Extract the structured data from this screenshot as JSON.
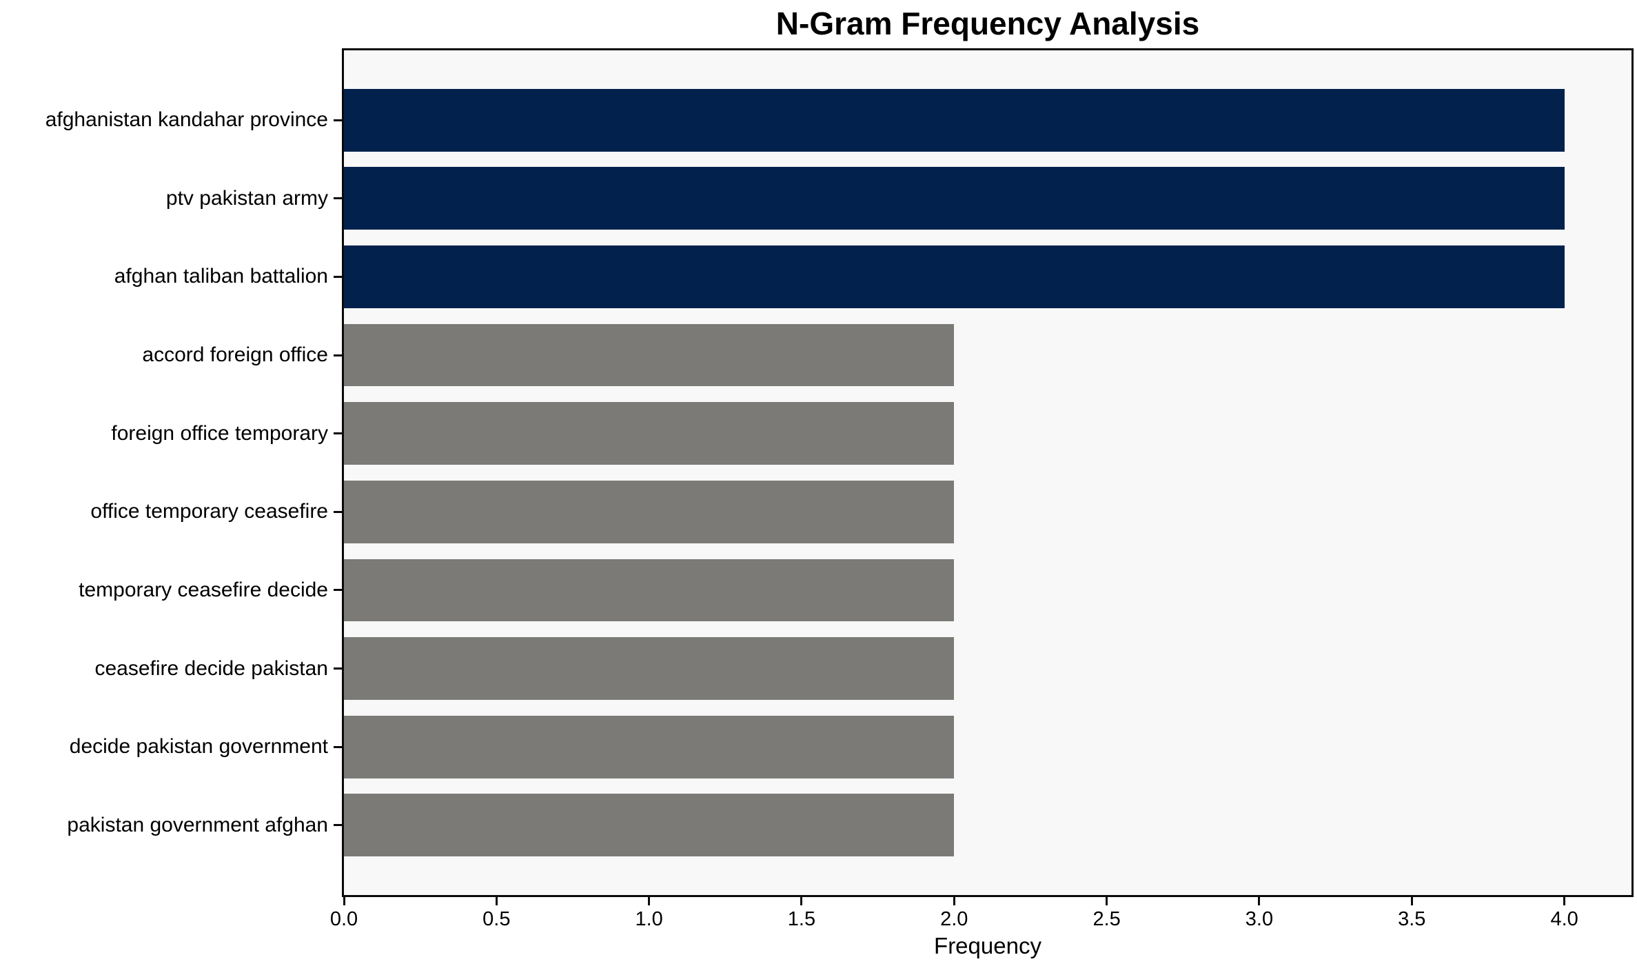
{
  "chart_data": {
    "type": "bar",
    "orientation": "horizontal",
    "title": "N-Gram Frequency Analysis",
    "xlabel": "Frequency",
    "ylabel": "",
    "categories": [
      "afghanistan kandahar province",
      "ptv pakistan army",
      "afghan taliban battalion",
      "accord foreign office",
      "foreign office temporary",
      "office temporary ceasefire",
      "temporary ceasefire decide",
      "ceasefire decide pakistan",
      "decide pakistan government",
      "pakistan government afghan"
    ],
    "values": [
      4,
      4,
      4,
      2,
      2,
      2,
      2,
      2,
      2,
      2
    ],
    "bar_colors": [
      "#02224d",
      "#02224d",
      "#02224d",
      "#7b7a77",
      "#7b7a77",
      "#7b7a77",
      "#7b7a77",
      "#7b7a77",
      "#7b7a77",
      "#7b7a77"
    ],
    "xlim": [
      0,
      4.22
    ],
    "xticks": [
      0.0,
      0.5,
      1.0,
      1.5,
      2.0,
      2.5,
      3.0,
      3.5,
      4.0
    ],
    "xtick_labels": [
      "0.0",
      "0.5",
      "1.0",
      "1.5",
      "2.0",
      "2.5",
      "3.0",
      "3.5",
      "4.0"
    ],
    "grid": false,
    "legend": false,
    "colors": {
      "highlight_bar": "#02224d",
      "regular_bar": "#7b7a77",
      "plot_background": "#f8f8f8",
      "figure_background": "#ffffff",
      "spine": "#0a0a0a",
      "text": "#000000"
    }
  }
}
